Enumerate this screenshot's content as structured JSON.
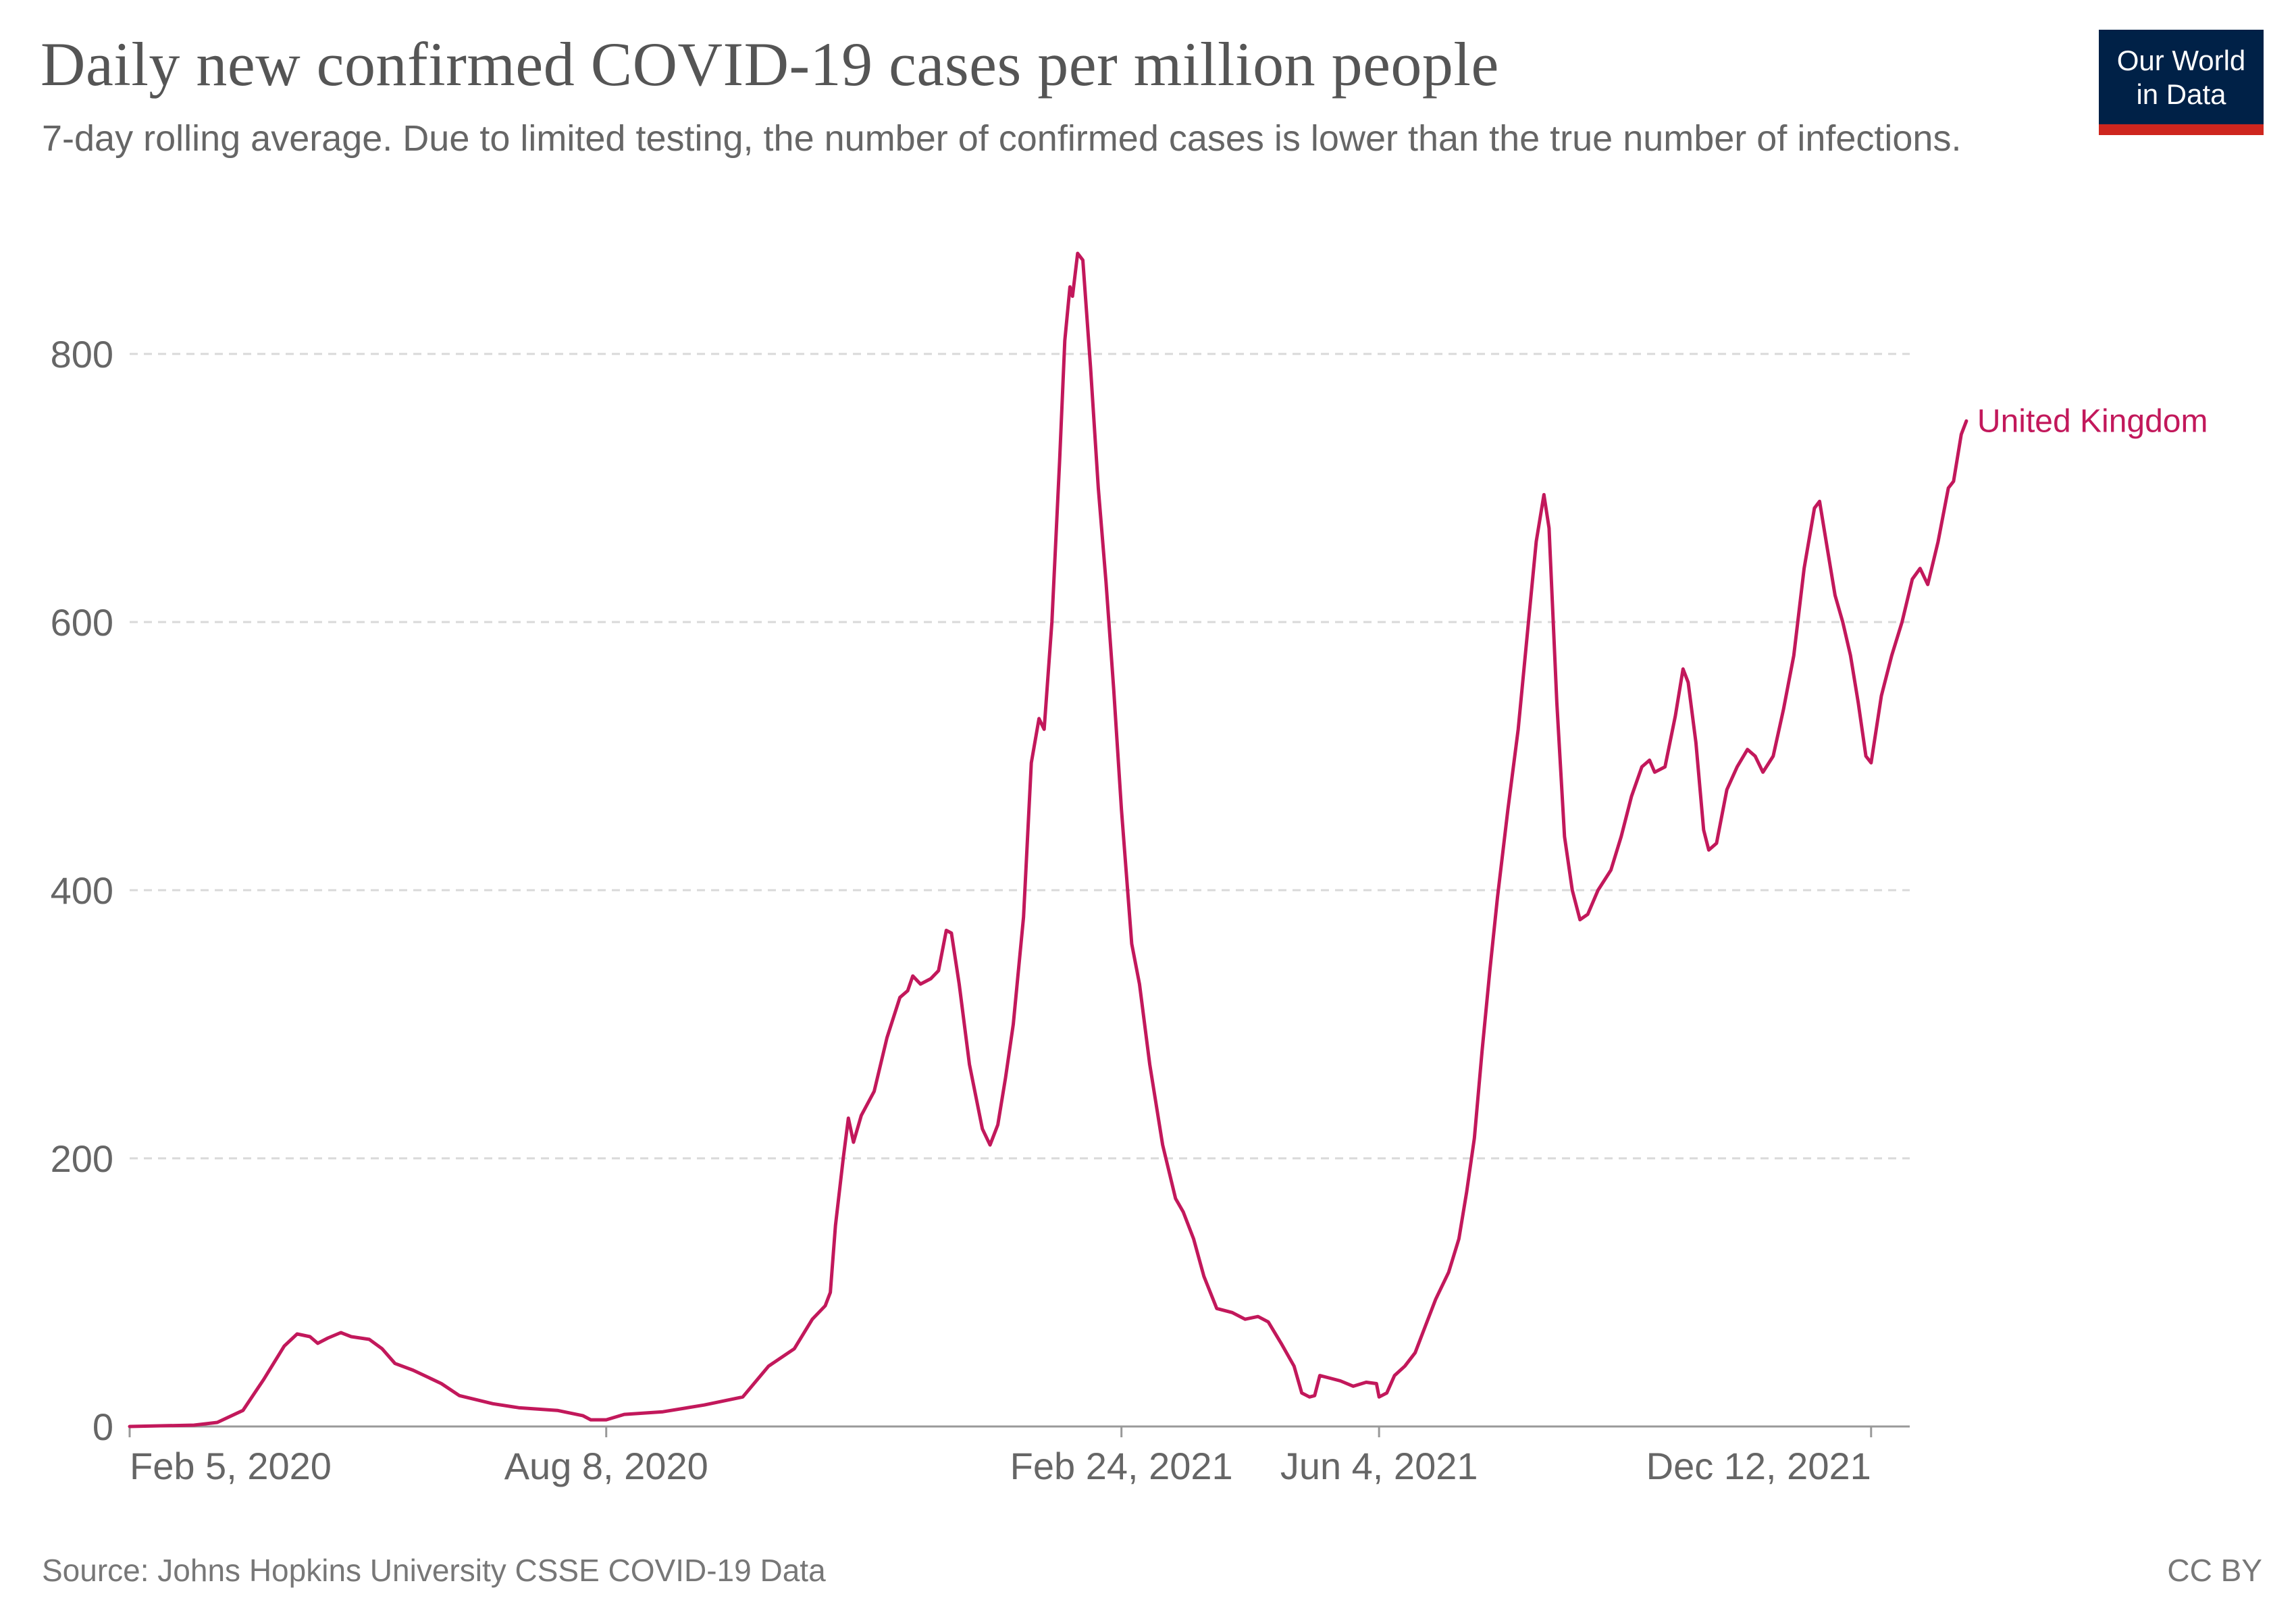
{
  "header": {
    "title": "Daily new confirmed COVID-19 cases per million people",
    "subtitle": "7-day rolling average. Due to limited testing, the number of confirmed cases is lower than the true number of infections."
  },
  "logo": {
    "line1": "Our World",
    "line2": "in Data",
    "bg_color": "#002147",
    "accent_color": "#ce261e"
  },
  "footer": {
    "source": "Source: Johns Hopkins University CSSE COVID-19 Data",
    "license": "CC BY"
  },
  "chart_data": {
    "type": "line",
    "title": "Daily new confirmed COVID-19 cases per million people",
    "subtitle": "7-day rolling average. Due to limited testing, the number of confirmed cases is lower than the true number of infections.",
    "xlabel": "",
    "ylabel": "",
    "ylim": [
      0,
      800
    ],
    "yticks": [
      0,
      200,
      400,
      600,
      800
    ],
    "xlim": [
      "2020-02-05",
      "2021-12-27"
    ],
    "xticks": [
      {
        "date": "2020-02-05",
        "label": "Feb 5, 2020"
      },
      {
        "date": "2020-08-08",
        "label": "Aug 8, 2020"
      },
      {
        "date": "2021-02-24",
        "label": "Feb 24, 2021"
      },
      {
        "date": "2021-06-04",
        "label": "Jun 4, 2021"
      },
      {
        "date": "2021-12-12",
        "label": "Dec 12, 2021"
      }
    ],
    "grid": "horizontal dashed",
    "legend": "inline label at line end",
    "series": [
      {
        "name": "United Kingdom",
        "color": "#c2185b",
        "points": [
          [
            "2020-02-05",
            0
          ],
          [
            "2020-03-01",
            1
          ],
          [
            "2020-03-10",
            3
          ],
          [
            "2020-03-20",
            12
          ],
          [
            "2020-03-28",
            35
          ],
          [
            "2020-04-05",
            60
          ],
          [
            "2020-04-10",
            69
          ],
          [
            "2020-04-15",
            67
          ],
          [
            "2020-04-18",
            62
          ],
          [
            "2020-04-22",
            66
          ],
          [
            "2020-04-27",
            70
          ],
          [
            "2020-05-01",
            67
          ],
          [
            "2020-05-08",
            65
          ],
          [
            "2020-05-13",
            58
          ],
          [
            "2020-05-18",
            47
          ],
          [
            "2020-05-25",
            42
          ],
          [
            "2020-06-05",
            32
          ],
          [
            "2020-06-12",
            23
          ],
          [
            "2020-06-25",
            17
          ],
          [
            "2020-07-05",
            14
          ],
          [
            "2020-07-20",
            12
          ],
          [
            "2020-07-30",
            8
          ],
          [
            "2020-08-02",
            5
          ],
          [
            "2020-08-08",
            5
          ],
          [
            "2020-08-15",
            9
          ],
          [
            "2020-08-30",
            11
          ],
          [
            "2020-09-15",
            16
          ],
          [
            "2020-09-30",
            22
          ],
          [
            "2020-10-10",
            45
          ],
          [
            "2020-10-20",
            58
          ],
          [
            "2020-10-27",
            80
          ],
          [
            "2020-11-01",
            90
          ],
          [
            "2020-11-03",
            100
          ],
          [
            "2020-11-05",
            150
          ],
          [
            "2020-11-08",
            200
          ],
          [
            "2020-11-10",
            230
          ],
          [
            "2020-11-12",
            212
          ],
          [
            "2020-11-15",
            232
          ],
          [
            "2020-11-20",
            250
          ],
          [
            "2020-11-25",
            290
          ],
          [
            "2020-11-30",
            320
          ],
          [
            "2020-12-03",
            325
          ],
          [
            "2020-12-05",
            336
          ],
          [
            "2020-12-08",
            330
          ],
          [
            "2020-12-12",
            334
          ],
          [
            "2020-12-15",
            340
          ],
          [
            "2020-12-18",
            370
          ],
          [
            "2020-12-20",
            368
          ],
          [
            "2020-12-23",
            330
          ],
          [
            "2020-12-27",
            270
          ],
          [
            "2021-01-01",
            222
          ],
          [
            "2021-01-04",
            210
          ],
          [
            "2021-01-07",
            225
          ],
          [
            "2021-01-10",
            260
          ],
          [
            "2021-01-13",
            300
          ],
          [
            "2021-01-17",
            380
          ],
          [
            "2021-01-20",
            495
          ],
          [
            "2021-01-23",
            528
          ],
          [
            "2021-01-25",
            520
          ],
          [
            "2021-01-28",
            600
          ],
          [
            "2021-01-31",
            720
          ],
          [
            "2021-02-02",
            810
          ],
          [
            "2021-02-04",
            850
          ],
          [
            "2021-02-05",
            843
          ],
          [
            "2021-02-07",
            875
          ],
          [
            "2021-02-09",
            870
          ],
          [
            "2021-02-12",
            790
          ],
          [
            "2021-02-15",
            700
          ],
          [
            "2021-02-18",
            630
          ],
          [
            "2021-02-21",
            550
          ],
          [
            "2021-02-24",
            460
          ],
          [
            "2021-02-28",
            360
          ],
          [
            "2021-03-03",
            330
          ],
          [
            "2021-03-07",
            270
          ],
          [
            "2021-03-12",
            210
          ],
          [
            "2021-03-17",
            170
          ],
          [
            "2021-03-20",
            160
          ],
          [
            "2021-03-24",
            140
          ],
          [
            "2021-03-28",
            112
          ],
          [
            "2021-04-02",
            88
          ],
          [
            "2021-04-08",
            85
          ],
          [
            "2021-04-13",
            80
          ],
          [
            "2021-04-18",
            82
          ],
          [
            "2021-04-22",
            78
          ],
          [
            "2021-04-27",
            62
          ],
          [
            "2021-05-02",
            45
          ],
          [
            "2021-05-05",
            25
          ],
          [
            "2021-05-08",
            22
          ],
          [
            "2021-05-10",
            23
          ],
          [
            "2021-05-12",
            38
          ],
          [
            "2021-05-16",
            36
          ],
          [
            "2021-05-20",
            34
          ],
          [
            "2021-05-25",
            30
          ],
          [
            "2021-05-30",
            33
          ],
          [
            "2021-06-03",
            32
          ],
          [
            "2021-06-04",
            22
          ],
          [
            "2021-06-07",
            25
          ],
          [
            "2021-06-10",
            38
          ],
          [
            "2021-06-14",
            45
          ],
          [
            "2021-06-18",
            55
          ],
          [
            "2021-06-22",
            75
          ],
          [
            "2021-06-26",
            95
          ],
          [
            "2021-07-01",
            115
          ],
          [
            "2021-07-05",
            140
          ],
          [
            "2021-07-08",
            175
          ],
          [
            "2021-07-11",
            215
          ],
          [
            "2021-07-14",
            280
          ],
          [
            "2021-07-17",
            340
          ],
          [
            "2021-07-20",
            395
          ],
          [
            "2021-07-24",
            460
          ],
          [
            "2021-07-28",
            520
          ],
          [
            "2021-08-01",
            600
          ],
          [
            "2021-08-04",
            660
          ],
          [
            "2021-08-07",
            695
          ],
          [
            "2021-08-09",
            670
          ],
          [
            "2021-08-12",
            540
          ],
          [
            "2021-08-15",
            440
          ],
          [
            "2021-08-18",
            400
          ],
          [
            "2021-08-21",
            378
          ],
          [
            "2021-08-24",
            382
          ],
          [
            "2021-08-28",
            400
          ],
          [
            "2021-09-02",
            415
          ],
          [
            "2021-09-06",
            440
          ],
          [
            "2021-09-10",
            470
          ],
          [
            "2021-09-14",
            492
          ],
          [
            "2021-09-17",
            497
          ],
          [
            "2021-09-19",
            488
          ],
          [
            "2021-09-23",
            492
          ],
          [
            "2021-09-27",
            530
          ],
          [
            "2021-09-30",
            565
          ],
          [
            "2021-10-02",
            555
          ],
          [
            "2021-10-05",
            510
          ],
          [
            "2021-10-08",
            445
          ],
          [
            "2021-10-10",
            430
          ],
          [
            "2021-10-13",
            435
          ],
          [
            "2021-10-17",
            475
          ],
          [
            "2021-10-21",
            492
          ],
          [
            "2021-10-25",
            505
          ],
          [
            "2021-10-28",
            500
          ],
          [
            "2021-10-31",
            488
          ],
          [
            "2021-11-04",
            500
          ],
          [
            "2021-11-08",
            535
          ],
          [
            "2021-11-12",
            575
          ],
          [
            "2021-11-16",
            640
          ],
          [
            "2021-11-20",
            685
          ],
          [
            "2021-11-22",
            690
          ],
          [
            "2021-11-25",
            655
          ],
          [
            "2021-11-28",
            620
          ],
          [
            "2021-12-01",
            600
          ],
          [
            "2021-12-04",
            575
          ],
          [
            "2021-12-07",
            540
          ],
          [
            "2021-12-10",
            500
          ],
          [
            "2021-12-12",
            495
          ],
          [
            "2021-12-16",
            545
          ],
          [
            "2021-12-20",
            575
          ],
          [
            "2021-12-24",
            600
          ],
          [
            "2021-12-28",
            632
          ],
          [
            "2021-12-31",
            640
          ],
          [
            "2022-01-03",
            628
          ],
          [
            "2022-01-07",
            660
          ],
          [
            "2022-01-11",
            700
          ],
          [
            "2022-01-13",
            705
          ],
          [
            "2022-01-16",
            740
          ],
          [
            "2022-01-18",
            750
          ]
        ]
      }
    ]
  }
}
